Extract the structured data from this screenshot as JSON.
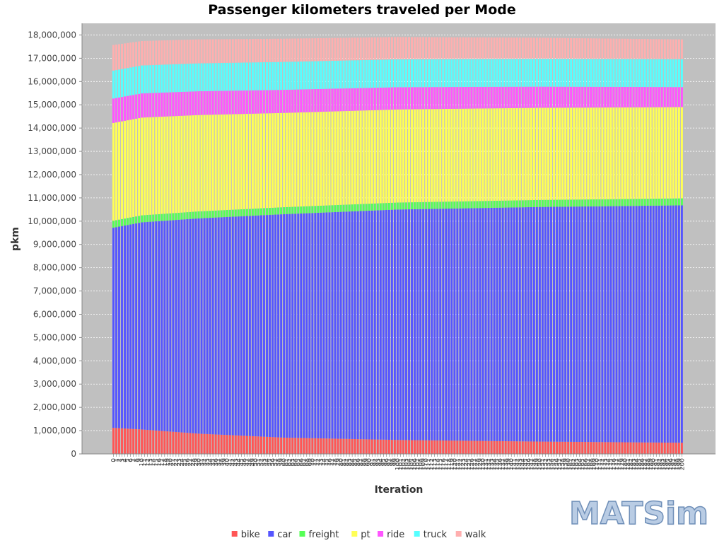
{
  "chart_data": {
    "type": "bar",
    "stacked": true,
    "title": "Passenger kilometers traveled per Mode",
    "xlabel": "Iteration",
    "ylabel": "pkm",
    "ylim": [
      0,
      18500000
    ],
    "yticks": [
      0,
      1000000,
      2000000,
      3000000,
      4000000,
      5000000,
      6000000,
      7000000,
      8000000,
      9000000,
      10000000,
      11000000,
      12000000,
      13000000,
      14000000,
      15000000,
      16000000,
      17000000,
      18000000
    ],
    "ytick_labels": [
      "0",
      "1,000,000",
      "2,000,000",
      "3,000,000",
      "4,000,000",
      "5,000,000",
      "6,000,000",
      "7,000,000",
      "8,000,000",
      "9,000,000",
      "10,000,000",
      "11,000,000",
      "12,000,000",
      "13,000,000",
      "14,000,000",
      "15,000,000",
      "16,000,000",
      "17,000,000",
      "18,000,000"
    ],
    "x_range": [
      0,
      200
    ],
    "grid": true,
    "plot_background": "#c0c0c0",
    "legend_position": "bottom",
    "series": [
      {
        "name": "bike",
        "color": "#ff5555",
        "keyframes": [
          [
            0,
            1120000
          ],
          [
            10,
            1050000
          ],
          [
            30,
            870000
          ],
          [
            60,
            700000
          ],
          [
            100,
            600000
          ],
          [
            150,
            530000
          ],
          [
            200,
            480000
          ]
        ]
      },
      {
        "name": "car",
        "color": "#5555ff",
        "keyframes": [
          [
            0,
            8600000
          ],
          [
            10,
            8900000
          ],
          [
            30,
            9250000
          ],
          [
            60,
            9600000
          ],
          [
            100,
            9900000
          ],
          [
            150,
            10080000
          ],
          [
            200,
            10200000
          ]
        ]
      },
      {
        "name": "freight",
        "color": "#55ff55",
        "keyframes": [
          [
            0,
            300000
          ],
          [
            200,
            300000
          ]
        ]
      },
      {
        "name": "pt",
        "color": "#ffff55",
        "keyframes": [
          [
            0,
            4200000
          ],
          [
            10,
            4200000
          ],
          [
            60,
            4050000
          ],
          [
            100,
            4000000
          ],
          [
            150,
            3960000
          ],
          [
            200,
            3920000
          ]
        ]
      },
      {
        "name": "ride",
        "color": "#ff55ff",
        "keyframes": [
          [
            0,
            1050000
          ],
          [
            200,
            860000
          ]
        ]
      },
      {
        "name": "truck",
        "color": "#55ffff",
        "keyframes": [
          [
            0,
            1200000
          ],
          [
            200,
            1200000
          ]
        ]
      },
      {
        "name": "walk",
        "color": "#ffafaf",
        "keyframes": [
          [
            0,
            1100000
          ],
          [
            10,
            1050000
          ],
          [
            200,
            850000
          ]
        ]
      }
    ]
  },
  "watermark": {
    "text": "MATSim",
    "color": "#b9cce4",
    "outline_color": "#6f8fb8"
  }
}
